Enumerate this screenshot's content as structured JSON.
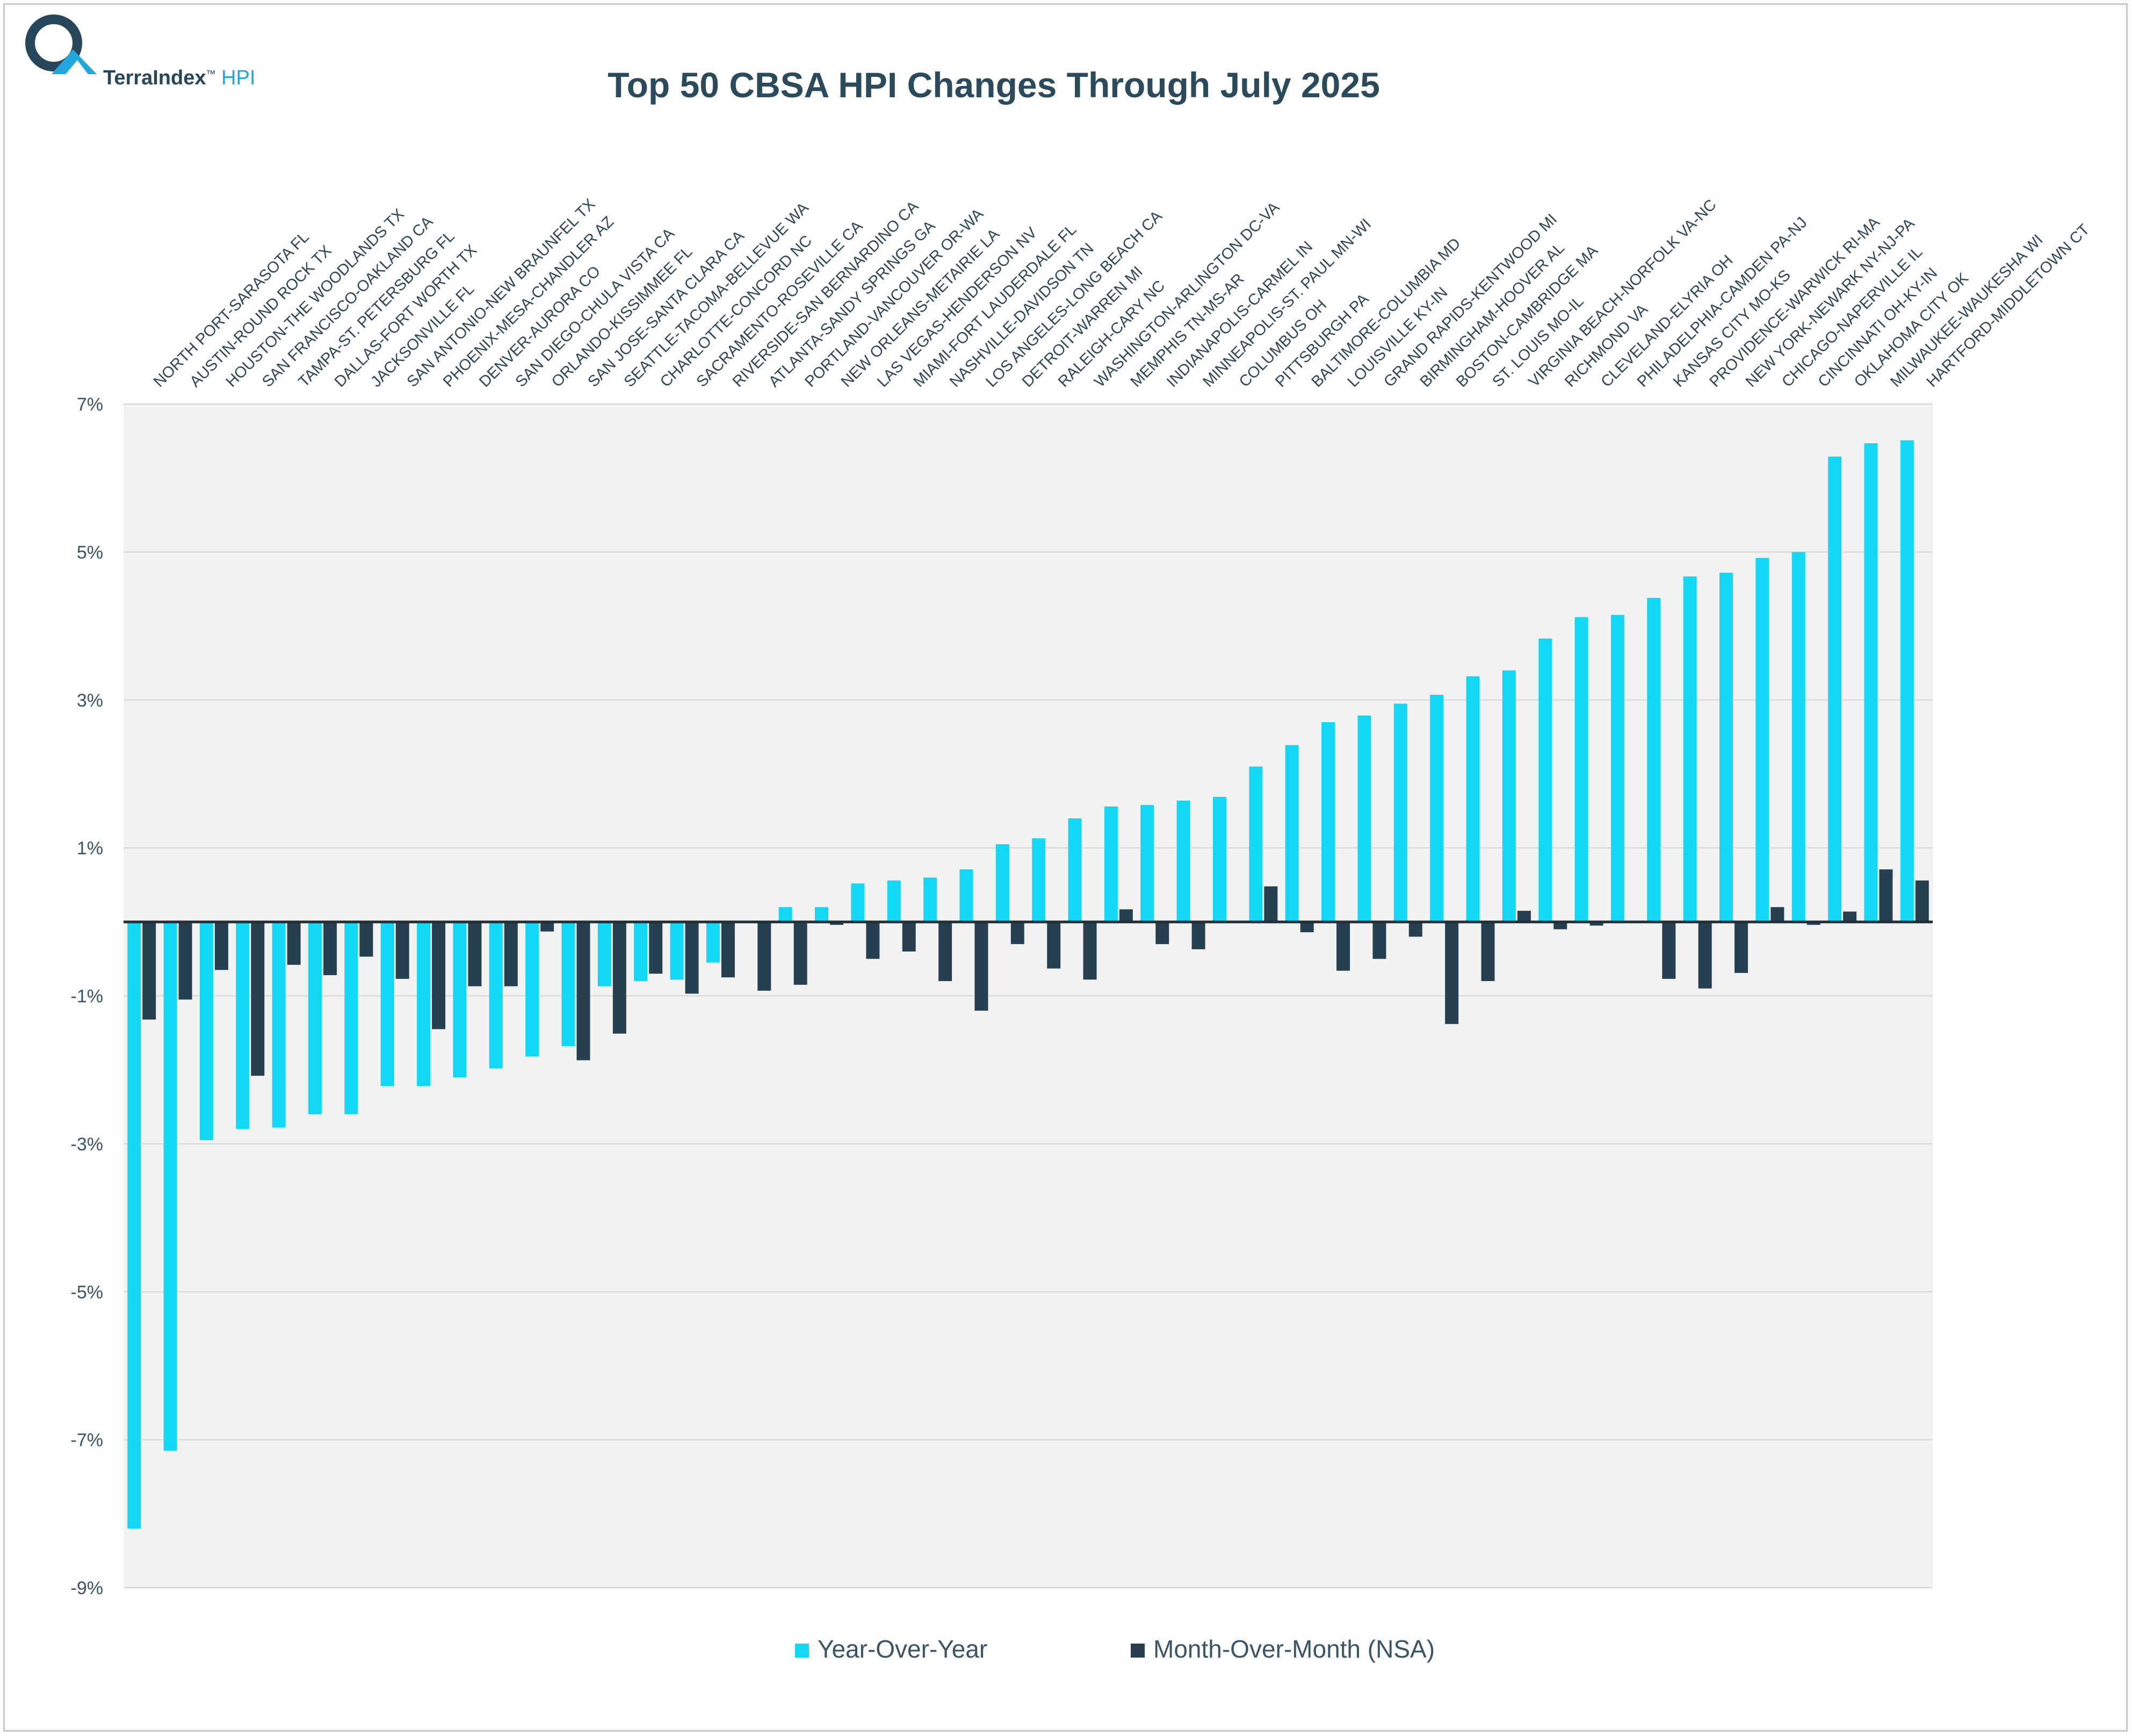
{
  "logo": {
    "brand": "TerraIndex",
    "tm": "™",
    "suffix": "HPI"
  },
  "chart_data": {
    "type": "bar",
    "title": "Top 50 CBSA HPI Changes Through July 2025",
    "xlabel": "",
    "ylabel": "",
    "ylim": [
      -9,
      7
    ],
    "yticks": [
      7,
      5,
      3,
      1,
      -1,
      -3,
      -5,
      -7,
      -9
    ],
    "ytick_labels": [
      "7%",
      "5%",
      "3%",
      "1%",
      "-1%",
      "-3%",
      "-5%",
      "-7%",
      "-9%"
    ],
    "grid": true,
    "legend_position": "bottom",
    "categories": [
      "NORTH PORT-SARASOTA FL",
      "AUSTIN-ROUND ROCK TX",
      "HOUSTON-THE WOODLANDS TX",
      "SAN FRANCISCO-OAKLAND CA",
      "TAMPA-ST. PETERSBURG FL",
      "DALLAS-FORT WORTH TX",
      "JACKSONVILLE FL",
      "SAN ANTONIO-NEW BRAUNFEL TX",
      "PHOENIX-MESA-CHANDLER AZ",
      "DENVER-AURORA CO",
      "SAN DIEGO-CHULA VISTA CA",
      "ORLANDO-KISSIMMEE FL",
      "SAN JOSE-SANTA CLARA CA",
      "SEATTLE-TACOMA-BELLEVUE WA",
      "CHARLOTTE-CONCORD NC",
      "SACRAMENTO-ROSEVILLE CA",
      "RIVERSIDE-SAN BERNARDINO CA",
      "ATLANTA-SANDY SPRINGS GA",
      "PORTLAND-VANCOUVER OR-WA",
      "NEW ORLEANS-METAIRIE LA",
      "LAS VEGAS-HENDERSON NV",
      "MIAMI-FORT LAUDERDALE FL",
      "NASHVILLE-DAVIDSON TN",
      "LOS ANGELES-LONG BEACH CA",
      "DETROIT-WARREN MI",
      "RALEIGH-CARY NC",
      "WASHINGTON-ARLINGTON DC-VA",
      "MEMPHIS TN-MS-AR",
      "INDIANAPOLIS-CARMEL IN",
      "MINNEAPOLIS-ST. PAUL MN-WI",
      "COLUMBUS OH",
      "PITTSBURGH PA",
      "BALTIMORE-COLUMBIA MD",
      "LOUISVILLE KY-IN",
      "GRAND RAPIDS-KENTWOOD MI",
      "BIRMINGHAM-HOOVER AL",
      "BOSTON-CAMBRIDGE MA",
      "ST. LOUIS MO-IL",
      "VIRGINIA BEACH-NORFOLK VA-NC",
      "RICHMOND VA",
      "CLEVELAND-ELYRIA OH",
      "PHILADELPHIA-CAMDEN PA-NJ",
      "KANSAS CITY MO-KS",
      "PROVIDENCE-WARWICK RI-MA",
      "NEW YORK-NEWARK NY-NJ-PA",
      "CHICAGO-NAPERVILLE IL",
      "CINCINNATI OH-KY-IN",
      "OKLAHOMA CITY OK",
      "MILWAUKEE-WAUKESHA WI",
      "HARTFORD-MIDDLETOWN CT"
    ],
    "series": [
      {
        "name": "Year-Over-Year",
        "color": "#12d8f5",
        "values": [
          -8.2,
          -7.15,
          -2.95,
          -2.8,
          -2.78,
          -2.6,
          -2.6,
          -2.22,
          -2.22,
          -2.1,
          -1.98,
          -1.82,
          -1.68,
          -0.87,
          -0.8,
          -0.78,
          -0.55,
          0.0,
          0.2,
          0.2,
          0.52,
          0.56,
          0.6,
          0.71,
          1.05,
          1.13,
          1.4,
          1.56,
          1.58,
          1.64,
          1.69,
          2.1,
          2.39,
          2.7,
          2.79,
          2.95,
          3.07,
          3.32,
          3.4,
          3.83,
          4.12,
          4.15,
          4.38,
          4.67,
          4.72,
          4.92,
          5.0,
          6.29,
          6.47,
          6.51
        ]
      },
      {
        "name": "Month-Over-Month (NSA)",
        "color": "#27404f",
        "values": [
          -1.32,
          -1.05,
          -0.65,
          -2.08,
          -0.58,
          -0.72,
          -0.47,
          -0.77,
          -1.45,
          -0.87,
          -0.87,
          -0.13,
          -1.87,
          -1.51,
          -0.7,
          -0.97,
          -0.75,
          -0.93,
          -0.85,
          -0.04,
          -0.5,
          -0.4,
          -0.8,
          -1.2,
          -0.3,
          -0.63,
          -0.78,
          0.17,
          -0.3,
          -0.37,
          0.0,
          0.48,
          -0.14,
          -0.66,
          -0.5,
          -0.2,
          -1.38,
          -0.8,
          0.15,
          -0.1,
          -0.05,
          0.0,
          -0.77,
          -0.9,
          -0.69,
          0.2,
          -0.04,
          0.14,
          0.71,
          0.56
        ]
      }
    ]
  }
}
